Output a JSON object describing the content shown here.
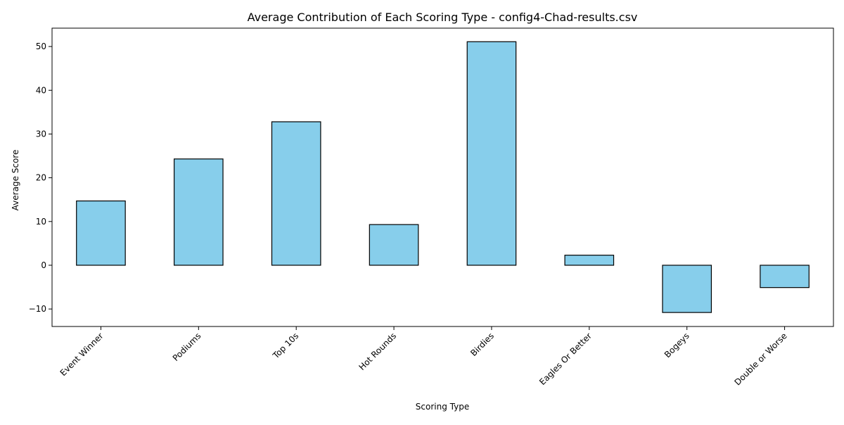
{
  "chart_data": {
    "type": "bar",
    "title": "Average Contribution of Each Scoring Type - config4-Chad-results.csv",
    "xlabel": "Scoring Type",
    "ylabel": "Average Score",
    "categories": [
      "Event Winner",
      "Podiums",
      "Top 10s",
      "Hot Rounds",
      "Birdies",
      "Eagles Or Better",
      "Bogeys",
      "Double or Worse"
    ],
    "values": [
      14.7,
      24.3,
      32.8,
      9.3,
      51.1,
      2.3,
      -10.8,
      -5.1
    ],
    "ylim": [
      -14,
      54.2
    ],
    "yticks": [
      -10,
      0,
      10,
      20,
      30,
      40,
      50
    ],
    "ytick_labels": [
      "−10",
      "0",
      "10",
      "20",
      "30",
      "40",
      "50"
    ],
    "grid": false,
    "legend": "none",
    "colors": {
      "bar_fill": "#87ceeb",
      "bar_edge": "#000000"
    }
  }
}
